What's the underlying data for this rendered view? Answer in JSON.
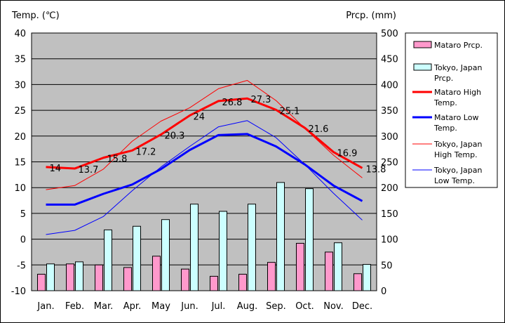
{
  "chart_data": {
    "type": "bar+line",
    "categories": [
      "Jan.",
      "Feb.",
      "Mar.",
      "Apr.",
      "May",
      "Jun.",
      "Jul.",
      "Aug.",
      "Sep.",
      "Oct.",
      "Nov.",
      "Dec."
    ],
    "y_left": {
      "label": "Temp. (℃)",
      "min": -10,
      "max": 40,
      "step": 5
    },
    "y_right": {
      "label": "Prcp. (mm)",
      "min": 0,
      "max": 500,
      "step": 50
    },
    "grid": true,
    "legend_position": "right",
    "precip_series": [
      {
        "name": "Mataro Prcp.",
        "color": "#ff99cc",
        "values": [
          32,
          52,
          50,
          45,
          67,
          42,
          28,
          32,
          55,
          92,
          75,
          33
        ]
      },
      {
        "name": "Tokyo, Japan Prcp.",
        "color": "#ccffff",
        "values": [
          52,
          56,
          118,
          125,
          138,
          168,
          154,
          168,
          210,
          198,
          93,
          51
        ]
      }
    ],
    "temp_series": [
      {
        "name": "Mataro High Temp.",
        "color": "#ff0000",
        "width": 3,
        "values": [
          14,
          13.7,
          15.8,
          17.2,
          20.3,
          24,
          26.8,
          27.3,
          25.1,
          21.6,
          16.9,
          13.8
        ],
        "labels": [
          "14",
          "13.7",
          "15.8",
          "17.2",
          "20.3",
          "24",
          "26.8",
          "27.3",
          "25.1",
          "21.6",
          "16.9",
          "13.8"
        ]
      },
      {
        "name": "Mataro Low Temp.",
        "color": "#0000ff",
        "width": 3,
        "values": [
          6.7,
          6.7,
          8.8,
          10.6,
          13.6,
          17.3,
          20.2,
          20.4,
          18.0,
          14.5,
          10.4,
          7.4
        ]
      },
      {
        "name": "Tokyo, Japan High Temp.",
        "color": "#ff0000",
        "width": 1,
        "values": [
          9.6,
          10.4,
          13.6,
          19.0,
          22.9,
          25.5,
          29.2,
          30.8,
          26.9,
          21.5,
          16.3,
          11.9
        ]
      },
      {
        "name": "Tokyo, Japan Low Temp.",
        "color": "#0000ff",
        "width": 1,
        "values": [
          0.9,
          1.7,
          4.4,
          9.4,
          14.0,
          18.0,
          21.8,
          23.0,
          19.7,
          14.5,
          8.9,
          3.7
        ]
      }
    ]
  },
  "legend": [
    {
      "lines": [
        "Mataro Prcp."
      ],
      "kind": "box",
      "color": "#ff99cc"
    },
    {
      "lines": [
        "Tokyo, Japan",
        "Prcp."
      ],
      "kind": "box",
      "color": "#ccffff"
    },
    {
      "lines": [
        "Mataro High",
        "Temp."
      ],
      "kind": "line",
      "color": "#ff0000",
      "width": 3
    },
    {
      "lines": [
        "Mataro Low",
        "Temp."
      ],
      "kind": "line",
      "color": "#0000ff",
      "width": 3
    },
    {
      "lines": [
        "Tokyo, Japan",
        "High Temp."
      ],
      "kind": "line",
      "color": "#ff0000",
      "width": 1
    },
    {
      "lines": [
        "Tokyo, Japan",
        "Low Temp."
      ],
      "kind": "line",
      "color": "#0000ff",
      "width": 1
    }
  ]
}
